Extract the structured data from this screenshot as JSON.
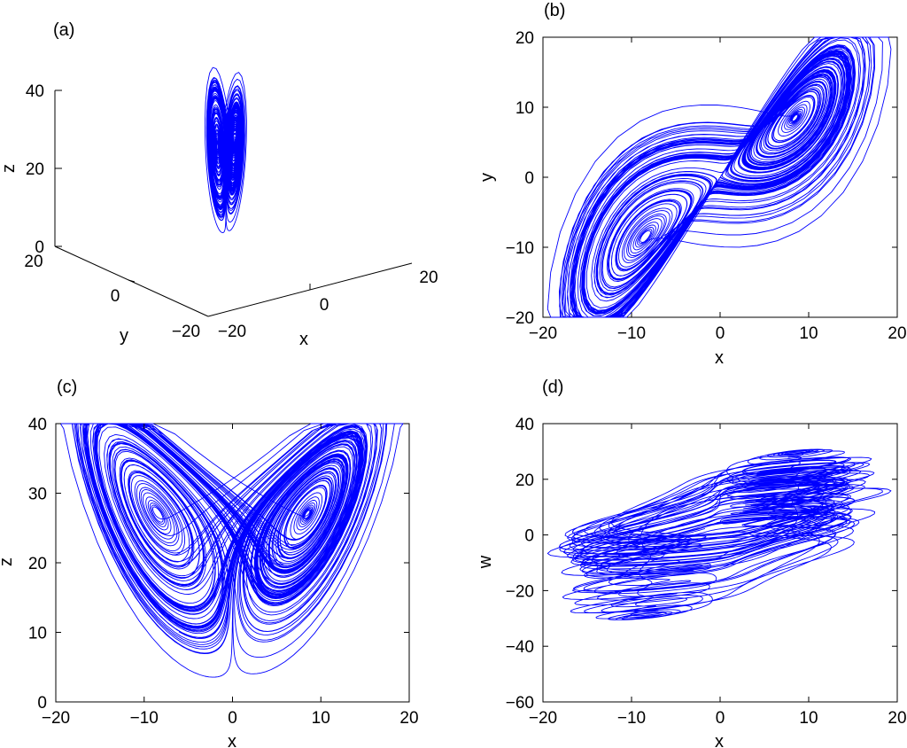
{
  "figure": {
    "panels": [
      {
        "id": "a",
        "label": "(a)"
      },
      {
        "id": "b",
        "label": "(b)"
      },
      {
        "id": "c",
        "label": "(c)"
      },
      {
        "id": "d",
        "label": "(d)"
      }
    ]
  },
  "chart_data": [
    {
      "panel": "(a)",
      "type": "line3d",
      "title": "",
      "xlabel": "x",
      "ylabel": "y",
      "zlabel": "z",
      "xlim": [
        -20,
        20
      ],
      "ylim": [
        -20,
        20
      ],
      "zlim": [
        0,
        40
      ],
      "xticks": [
        "−20",
        "0",
        "20"
      ],
      "yticks": [
        "20",
        "0",
        "−20"
      ],
      "zticks": [
        "0",
        "20",
        "40"
      ],
      "series_color": "#0000ff",
      "grid": false
    },
    {
      "panel": "(b)",
      "type": "line",
      "title": "",
      "xlabel": "x",
      "ylabel": "y",
      "xlim": [
        -20,
        20
      ],
      "ylim": [
        -20,
        20
      ],
      "xticks": [
        "−20",
        "−10",
        "0",
        "10",
        "20"
      ],
      "yticks": [
        "−20",
        "−10",
        "0",
        "10",
        "20"
      ],
      "series_color": "#0000ff",
      "grid": false
    },
    {
      "panel": "(c)",
      "type": "line",
      "title": "",
      "xlabel": "x",
      "ylabel": "z",
      "xlim": [
        -20,
        20
      ],
      "ylim": [
        0,
        40
      ],
      "xticks": [
        "−20",
        "−10",
        "0",
        "10",
        "20"
      ],
      "yticks": [
        "0",
        "10",
        "20",
        "30",
        "40"
      ],
      "series_color": "#0000ff",
      "grid": false
    },
    {
      "panel": "(d)",
      "type": "line",
      "title": "",
      "xlabel": "x",
      "ylabel": "w",
      "xlim": [
        -20,
        20
      ],
      "ylim": [
        -60,
        40
      ],
      "xticks": [
        "−20",
        "−10",
        "0",
        "10",
        "20"
      ],
      "yticks": [
        "−60",
        "−40",
        "−20",
        "0",
        "20",
        "40"
      ],
      "series_color": "#0000ff",
      "grid": false
    }
  ]
}
